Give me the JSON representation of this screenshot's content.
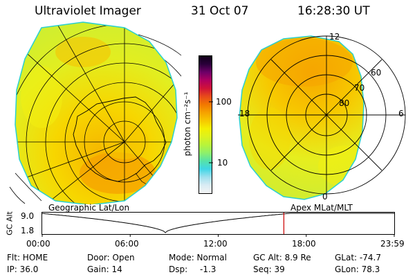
{
  "header": {
    "title": "Ultraviolet Imager",
    "date": "31 Oct 07",
    "time": "16:28:30 UT"
  },
  "left_panel": {
    "label": "Geographic Lat/Lon"
  },
  "right_panel": {
    "label": "Apex  MLat/MLT",
    "mlt_labels": {
      "top": "12",
      "left": "18",
      "right": "6",
      "bottom": "0"
    },
    "mlat_labels": [
      "60",
      "70",
      "80"
    ]
  },
  "colorbar": {
    "unit_label": "photon cm⁻²s⁻¹",
    "tick_100": "100",
    "tick_10": "10",
    "colors": [
      "#f4f4f4",
      "#d9ecf4",
      "#9fe0ee",
      "#3fd6e6",
      "#56e2a8",
      "#8ef06a",
      "#b8f43a",
      "#dcf21f",
      "#f4f002",
      "#f7c800",
      "#f6a200",
      "#f27800",
      "#e84a1a",
      "#d01238",
      "#b00060",
      "#6e0068",
      "#2a003a",
      "#100018"
    ]
  },
  "altitude_plot": {
    "axis_label": "GC Alt",
    "y_max": "9.0",
    "y_min": "1.8",
    "x_ticks": [
      "00:00",
      "06:00",
      "12:00",
      "18:00",
      "23:59"
    ],
    "current_time_hours": 16.475
  },
  "status": {
    "flt": "Flt: HOME",
    "ip": "IP: 36.0",
    "door": "Door: Open",
    "gain": "Gain: 14",
    "mode": "Mode: Normal",
    "dsp_label": "Dsp:",
    "dsp_value": "-1.3",
    "gc_alt": "GC Alt: 8.9 Re",
    "seq": "Seq: 39",
    "glat": "GLat: -74.7",
    "glon": "GLon:  78.3"
  },
  "colors": {
    "aurora_low": "#dcf21f",
    "aurora_mid": "#f7c800",
    "aurora_high": "#f6a200",
    "edge": "#2ad0d0",
    "marker": "#cc0000"
  }
}
